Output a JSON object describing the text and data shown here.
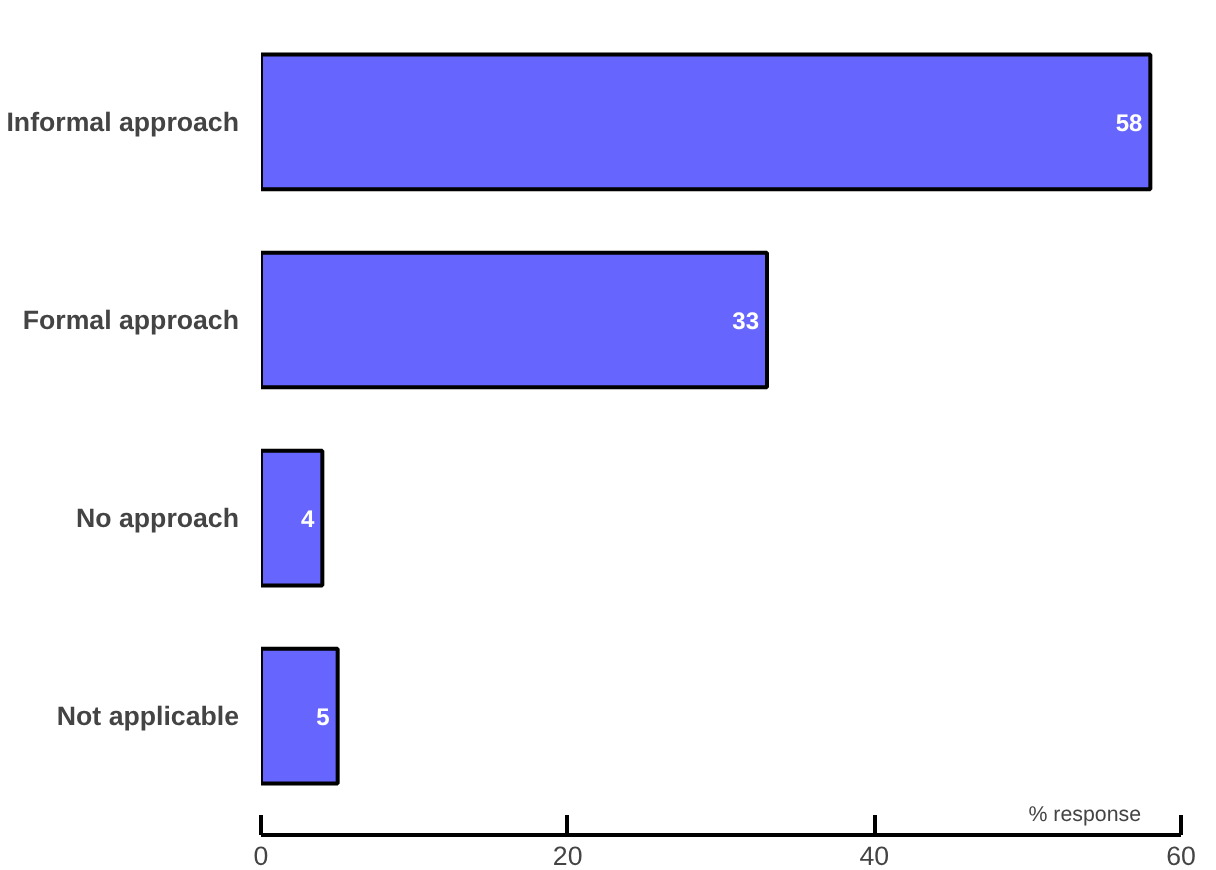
{
  "chart_data": {
    "type": "bar",
    "orientation": "horizontal",
    "categories": [
      "Informal approach",
      "Formal approach",
      "No approach",
      "Not applicable"
    ],
    "values": [
      58,
      33,
      4,
      5
    ],
    "color": "#6666ff",
    "xlabel": "% response",
    "xlim": [
      0,
      60
    ],
    "xticks": [
      0,
      20,
      40,
      60
    ],
    "data_labels": true,
    "grid": false
  }
}
